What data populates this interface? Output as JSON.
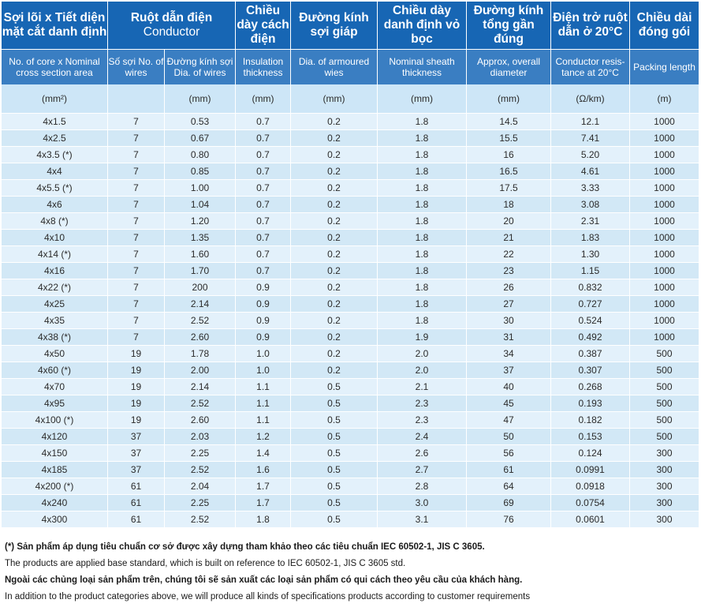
{
  "headers_vi": {
    "core": "Sợi lõi x Tiết diện mặt cắt danh định",
    "conductor_vi": "Ruột dẫn điện",
    "conductor_en": "Conductor",
    "insulation": "Chiều dày cách điện",
    "armour": "Đường kính sợi giáp",
    "sheath": "Chiều dày danh định vỏ bọc",
    "diameter": "Đường kính tổng gần đúng",
    "resistance": "Điện trở ruột dẫn ở 20°C",
    "packing": "Chiều dài đóng gói"
  },
  "headers_en": {
    "core": "No. of core  x Nominal cross section area",
    "wires": "Số sợi No. of wires",
    "dia_wires": "Đường kính sợi Dia. of wires",
    "insulation": "Insulation thickness",
    "armour": "Dia. of armoured wies",
    "sheath": "Nominal sheath thickness",
    "diameter": "Approx, overall diameter",
    "resistance": "Conductor resis- tance at 20°C",
    "packing": "Packing length"
  },
  "units": [
    "(mm²)",
    "",
    "(mm)",
    "(mm)",
    "(mm)",
    "(mm)",
    "(mm)",
    "(Ω/km)",
    "(m)"
  ],
  "rows": [
    [
      "4x1.5",
      "7",
      "0.53",
      "0.7",
      "0.2",
      "1.8",
      "14.5",
      "12.1",
      "1000"
    ],
    [
      "4x2.5",
      "7",
      "0.67",
      "0.7",
      "0.2",
      "1.8",
      "15.5",
      "7.41",
      "1000"
    ],
    [
      "4x3.5 (*)",
      "7",
      "0.80",
      "0.7",
      "0.2",
      "1.8",
      "16",
      "5.20",
      "1000"
    ],
    [
      "4x4",
      "7",
      "0.85",
      "0.7",
      "0.2",
      "1.8",
      "16.5",
      "4.61",
      "1000"
    ],
    [
      "4x5.5 (*)",
      "7",
      "1.00",
      "0.7",
      "0.2",
      "1.8",
      "17.5",
      "3.33",
      "1000"
    ],
    [
      "4x6",
      "7",
      "1.04",
      "0.7",
      "0.2",
      "1.8",
      "18",
      "3.08",
      "1000"
    ],
    [
      "4x8 (*)",
      "7",
      "1.20",
      "0.7",
      "0.2",
      "1.8",
      "20",
      "2.31",
      "1000"
    ],
    [
      "4x10",
      "7",
      "1.35",
      "0.7",
      "0.2",
      "1.8",
      "21",
      "1.83",
      "1000"
    ],
    [
      "4x14 (*)",
      "7",
      "1.60",
      "0.7",
      "0.2",
      "1.8",
      "22",
      "1.30",
      "1000"
    ],
    [
      "4x16",
      "7",
      "1.70",
      "0.7",
      "0.2",
      "1.8",
      "23",
      "1.15",
      "1000"
    ],
    [
      "4x22 (*)",
      "7",
      "200",
      "0.9",
      "0.2",
      "1.8",
      "26",
      "0.832",
      "1000"
    ],
    [
      "4x25",
      "7",
      "2.14",
      "0.9",
      "0.2",
      "1.8",
      "27",
      "0.727",
      "1000"
    ],
    [
      "4x35",
      "7",
      "2.52",
      "0.9",
      "0.2",
      "1.8",
      "30",
      "0.524",
      "1000"
    ],
    [
      "4x38 (*)",
      "7",
      "2.60",
      "0.9",
      "0.2",
      "1.9",
      "31",
      "0.492",
      "1000"
    ],
    [
      "4x50",
      "19",
      "1.78",
      "1.0",
      "0.2",
      "2.0",
      "34",
      "0.387",
      "500"
    ],
    [
      "4x60 (*)",
      "19",
      "2.00",
      "1.0",
      "0.2",
      "2.0",
      "37",
      "0.307",
      "500"
    ],
    [
      "4x70",
      "19",
      "2.14",
      "1.1",
      "0.5",
      "2.1",
      "40",
      "0.268",
      "500"
    ],
    [
      "4x95",
      "19",
      "2.52",
      "1.1",
      "0.5",
      "2.3",
      "45",
      "0.193",
      "500"
    ],
    [
      "4x100 (*)",
      "19",
      "2.60",
      "1.1",
      "0.5",
      "2.3",
      "47",
      "0.182",
      "500"
    ],
    [
      "4x120",
      "37",
      "2.03",
      "1.2",
      "0.5",
      "2.4",
      "50",
      "0.153",
      "500"
    ],
    [
      "4x150",
      "37",
      "2.25",
      "1.4",
      "0.5",
      "2.6",
      "56",
      "0.124",
      "300"
    ],
    [
      "4x185",
      "37",
      "2.52",
      "1.6",
      "0.5",
      "2.7",
      "61",
      "0.0991",
      "300"
    ],
    [
      "4x200 (*)",
      "61",
      "2.04",
      "1.7",
      "0.5",
      "2.8",
      "64",
      "0.0918",
      "300"
    ],
    [
      "4x240",
      "61",
      "2.25",
      "1.7",
      "0.5",
      "3.0",
      "69",
      "0.0754",
      "300"
    ],
    [
      "4x300",
      "61",
      "2.52",
      "1.8",
      "0.5",
      "3.1",
      "76",
      "0.0601",
      "300"
    ]
  ],
  "notes": {
    "star_vi": "(*) Sản phẩm áp dụng tiêu chuẩn cơ sở được xây dựng tham khảo theo các tiêu chuẩn IEC 60502-1, JIS C 3605.",
    "star_en": "The products are applied base standard, which is built on reference to IEC 60502-1, JIS C 3605 std.",
    "custom_vi": "Ngoài các chủng loại sản phẩm trên, chúng tôi sẽ sản xuất các loại sản phẩm có qui cách theo yêu cầu của khách hàng.",
    "custom_en": "In addition to the product categories above, we will produce all kinds of specifications products according to customer requirements"
  },
  "colors": {
    "header_dark": "#1766b4",
    "header_mid": "#3a7ec2",
    "unit_row": "#cde6f7",
    "row_light": "#e3f1fb",
    "row_alt": "#d2e8f6"
  }
}
